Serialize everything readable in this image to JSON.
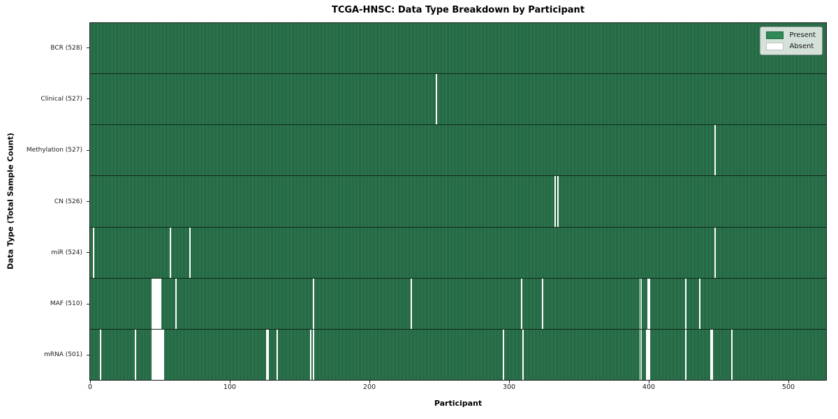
{
  "chart_data": {
    "type": "heatmap",
    "title": "TCGA-HNSC: Data Type Breakdown by Participant",
    "xlabel": "Participant",
    "ylabel": "Data Type (Total Sample Count)",
    "x_ticks": [
      0,
      100,
      200,
      300,
      400,
      500
    ],
    "n_participants": 528,
    "xlim": [
      0,
      528
    ],
    "grid": false,
    "legend": {
      "position": "upper right",
      "entries": [
        {
          "label": "Present",
          "color": "#2e8b57"
        },
        {
          "label": "Absent",
          "color": "#ffffff"
        }
      ]
    },
    "colors": {
      "present": "#2e8b57",
      "present_stripe_dark": "#225a3b",
      "absent": "#ffffff",
      "row_separator": "#122619"
    },
    "rows": [
      {
        "label": "BCR (528)",
        "data_type": "BCR",
        "present_count": 528,
        "absent_participants": []
      },
      {
        "label": "Clinical (527)",
        "data_type": "Clinical",
        "present_count": 527,
        "absent_participants": [
          248
        ]
      },
      {
        "label": "Methylation (527)",
        "data_type": "Methylation",
        "present_count": 527,
        "absent_participants": [
          448
        ]
      },
      {
        "label": "CN (526)",
        "data_type": "CN",
        "present_count": 526,
        "absent_participants": [
          333,
          335
        ]
      },
      {
        "label": "miR (524)",
        "data_type": "miR",
        "present_count": 524,
        "absent_participants": [
          2,
          57,
          71,
          448
        ]
      },
      {
        "label": "MAF (510)",
        "data_type": "MAF",
        "present_count": 510,
        "absent_participants": [
          44,
          45,
          46,
          47,
          48,
          49,
          50,
          61,
          160,
          230,
          309,
          324,
          394,
          395,
          400,
          401,
          427,
          437
        ]
      },
      {
        "label": "mRNA (501)",
        "data_type": "mRNA",
        "present_count": 501,
        "absent_participants": [
          7,
          32,
          44,
          45,
          46,
          47,
          48,
          49,
          50,
          51,
          52,
          126,
          127,
          134,
          158,
          160,
          296,
          310,
          394,
          395,
          399,
          400,
          401,
          427,
          445,
          446,
          460
        ]
      }
    ]
  }
}
